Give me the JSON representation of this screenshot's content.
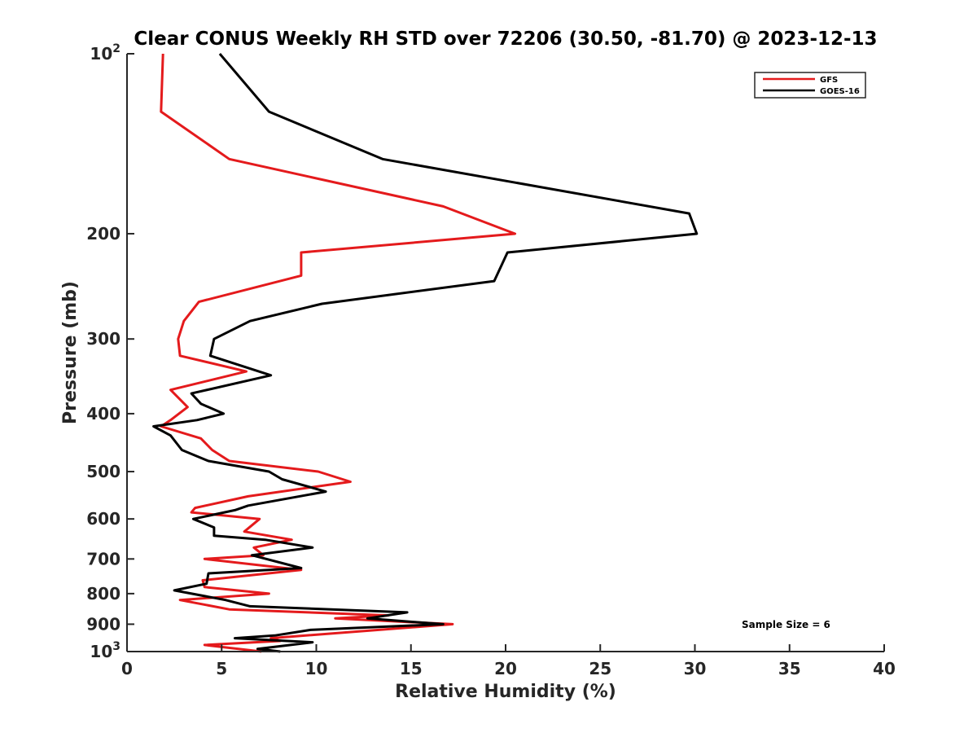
{
  "chart_data": {
    "type": "line",
    "title": "Clear CONUS Weekly RH STD over 72206 (30.50, -81.70) @ 2023-12-13",
    "xlabel": "Relative Humidity (%)",
    "ylabel": "Pressure (mb)",
    "xlim": [
      0,
      40
    ],
    "ylim": [
      100,
      1000
    ],
    "y_scale": "log",
    "y_reversed": true,
    "grid": false,
    "legend_position": "top-right",
    "x_ticks": [
      0,
      5,
      10,
      15,
      20,
      25,
      30,
      35,
      40
    ],
    "x_tick_labels": [
      "0",
      "5",
      "10",
      "15",
      "20",
      "25",
      "30",
      "35",
      "40"
    ],
    "y_ticks": [
      100,
      200,
      300,
      400,
      500,
      600,
      700,
      800,
      900,
      1000
    ],
    "y_tick_labels": [
      {
        "base": "10",
        "exp": "2"
      },
      {
        "base": "200",
        "exp": ""
      },
      {
        "base": "300",
        "exp": ""
      },
      {
        "base": "400",
        "exp": ""
      },
      {
        "base": "500",
        "exp": ""
      },
      {
        "base": "600",
        "exp": ""
      },
      {
        "base": "700",
        "exp": ""
      },
      {
        "base": "800",
        "exp": ""
      },
      {
        "base": "900",
        "exp": ""
      },
      {
        "base": "10",
        "exp": "3"
      }
    ],
    "annotation": "Sample Size = 6",
    "series": [
      {
        "name": "GFS",
        "color": "#e41a1c",
        "points": [
          [
            1.9,
            100
          ],
          [
            1.8,
            125
          ],
          [
            5.4,
            150
          ],
          [
            16.7,
            180
          ],
          [
            20.5,
            200
          ],
          [
            9.2,
            215
          ],
          [
            9.2,
            235
          ],
          [
            3.8,
            260
          ],
          [
            3.0,
            280
          ],
          [
            2.7,
            300
          ],
          [
            2.8,
            320
          ],
          [
            6.3,
            340
          ],
          [
            2.3,
            365
          ],
          [
            3.2,
            390
          ],
          [
            2.3,
            410
          ],
          [
            1.8,
            420
          ],
          [
            3.9,
            440
          ],
          [
            4.5,
            460
          ],
          [
            5.4,
            480
          ],
          [
            10.1,
            500
          ],
          [
            11.8,
            520
          ],
          [
            6.4,
            550
          ],
          [
            3.6,
            575
          ],
          [
            3.4,
            585
          ],
          [
            7.0,
            600
          ],
          [
            6.2,
            630
          ],
          [
            8.7,
            650
          ],
          [
            6.7,
            670
          ],
          [
            7.2,
            690
          ],
          [
            4.1,
            700
          ],
          [
            9.2,
            730
          ],
          [
            4.0,
            760
          ],
          [
            4.1,
            780
          ],
          [
            7.5,
            800
          ],
          [
            2.8,
            820
          ],
          [
            5.4,
            850
          ],
          [
            13.8,
            870
          ],
          [
            11.0,
            880
          ],
          [
            17.2,
            900
          ],
          [
            7.6,
            950
          ],
          [
            8.1,
            960
          ],
          [
            4.1,
            975
          ],
          [
            7.1,
            1000
          ]
        ]
      },
      {
        "name": "GOES-16",
        "color": "#000000",
        "points": [
          [
            4.9,
            100
          ],
          [
            7.5,
            125
          ],
          [
            13.5,
            150
          ],
          [
            29.7,
            185
          ],
          [
            30.1,
            200
          ],
          [
            20.1,
            215
          ],
          [
            19.4,
            240
          ],
          [
            10.3,
            262
          ],
          [
            6.5,
            280
          ],
          [
            4.6,
            300
          ],
          [
            4.4,
            320
          ],
          [
            7.6,
            345
          ],
          [
            3.4,
            370
          ],
          [
            3.9,
            385
          ],
          [
            5.1,
            400
          ],
          [
            3.7,
            410
          ],
          [
            1.4,
            420
          ],
          [
            2.3,
            435
          ],
          [
            2.9,
            460
          ],
          [
            4.3,
            480
          ],
          [
            7.5,
            500
          ],
          [
            8.2,
            515
          ],
          [
            10.5,
            540
          ],
          [
            6.4,
            570
          ],
          [
            5.7,
            580
          ],
          [
            3.5,
            600
          ],
          [
            4.6,
            620
          ],
          [
            4.6,
            640
          ],
          [
            7.3,
            650
          ],
          [
            9.8,
            670
          ],
          [
            6.6,
            690
          ],
          [
            9.2,
            725
          ],
          [
            4.3,
            740
          ],
          [
            4.2,
            770
          ],
          [
            2.5,
            790
          ],
          [
            5.2,
            820
          ],
          [
            6.5,
            840
          ],
          [
            14.8,
            860
          ],
          [
            12.7,
            880
          ],
          [
            16.7,
            900
          ],
          [
            9.7,
            920
          ],
          [
            7.8,
            940
          ],
          [
            5.7,
            950
          ],
          [
            9.8,
            965
          ],
          [
            6.9,
            990
          ],
          [
            8.1,
            1000
          ]
        ]
      }
    ]
  }
}
